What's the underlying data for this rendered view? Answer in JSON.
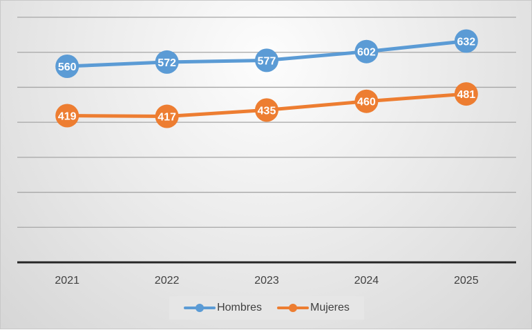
{
  "chart_data": {
    "type": "line",
    "title": "",
    "xlabel": "",
    "ylabel": "",
    "categories": [
      "2021",
      "2022",
      "2023",
      "2024",
      "2025"
    ],
    "series": [
      {
        "name": "Hombres",
        "color": "#5B9BD5",
        "values": [
          560,
          572,
          577,
          602,
          632
        ]
      },
      {
        "name": "Mujeres",
        "color": "#ED7D31",
        "values": [
          419,
          417,
          435,
          460,
          481
        ]
      }
    ],
    "ylim": [
      0,
      700
    ],
    "y_gridlines": [
      100,
      200,
      300,
      400,
      500,
      600,
      700
    ],
    "y_tick_labels_visible": false,
    "grid": true,
    "data_labels": true,
    "legend_position": "bottom"
  },
  "legend": {
    "items": [
      {
        "label": "Hombres",
        "color": "#5B9BD5"
      },
      {
        "label": "Mujeres",
        "color": "#ED7D31"
      }
    ]
  }
}
